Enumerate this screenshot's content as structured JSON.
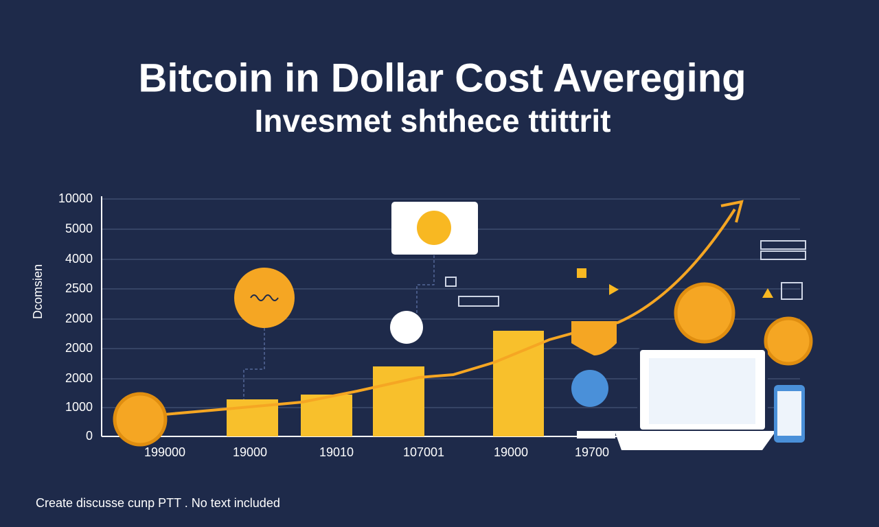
{
  "header": {
    "title": "Bitcoin in Dollar Cost Avereging",
    "subtitle": "Invesmet shthece ttittrit"
  },
  "graphic": {
    "y_axis_title": "Dcomsien",
    "y_labels": [
      "10000",
      "5000",
      "4000",
      "2500",
      "2000",
      "2000",
      "2000",
      "1000",
      "0"
    ],
    "x_labels": [
      "199000",
      "19000",
      "19010",
      "107001",
      "19000",
      "19700"
    ]
  },
  "footer": {
    "caption": "Create discusse cunp PTT . No text included"
  }
}
